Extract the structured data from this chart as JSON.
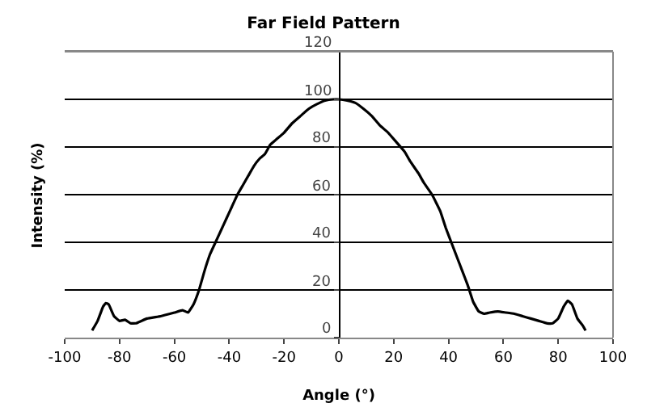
{
  "chart_data": {
    "type": "line",
    "title": "Far Field Pattern",
    "xlabel": "Angle (°)",
    "ylabel": "Intensity (%)",
    "x": [
      -90,
      -88,
      -86,
      -85,
      -84,
      -82,
      -80,
      -78,
      -76,
      -74,
      -72,
      -70,
      -65,
      -60,
      -57,
      -55,
      -53,
      -51,
      -49,
      -47,
      -45,
      -43,
      -41,
      -39,
      -37,
      -35,
      -33,
      -31,
      -29,
      -27,
      -25,
      -23,
      -20,
      -17,
      -14,
      -11,
      -8,
      -5,
      -2,
      0,
      3,
      6,
      9,
      12,
      15,
      18,
      21,
      24,
      26,
      29,
      31,
      34,
      37,
      39,
      41,
      43,
      45,
      47,
      49,
      51,
      53,
      55,
      58,
      61,
      64,
      67,
      70,
      73,
      76,
      78,
      80,
      82,
      83.5,
      85,
      87,
      89,
      90
    ],
    "series": [
      {
        "color": "#000000",
        "values": [
          3,
          7,
          13,
          14.5,
          14,
          9,
          7,
          7.5,
          6,
          6,
          7,
          8,
          9,
          10.5,
          11.5,
          10.5,
          14,
          20,
          28,
          35,
          40,
          45,
          50,
          55,
          60,
          64,
          68,
          72,
          75,
          77,
          81,
          83,
          86,
          90,
          93,
          96,
          98,
          99.5,
          100,
          100,
          99.5,
          98.5,
          96,
          93,
          89,
          86,
          82,
          78,
          74,
          69,
          65,
          60,
          53,
          46,
          40,
          34,
          28,
          22,
          15,
          11,
          10,
          10.5,
          11,
          10.5,
          10,
          9,
          8,
          7,
          6,
          6,
          8,
          13,
          15.5,
          14,
          8,
          5,
          3
        ]
      }
    ],
    "xlim": [
      -100,
      100
    ],
    "xticks": [
      -100,
      -80,
      -60,
      -40,
      -20,
      0,
      20,
      40,
      60,
      80,
      100
    ],
    "ylim": [
      0,
      120
    ],
    "yticks": [
      0,
      20,
      40,
      60,
      80,
      100,
      120
    ],
    "grid": "y",
    "marker": "none",
    "line_style": "solid"
  }
}
